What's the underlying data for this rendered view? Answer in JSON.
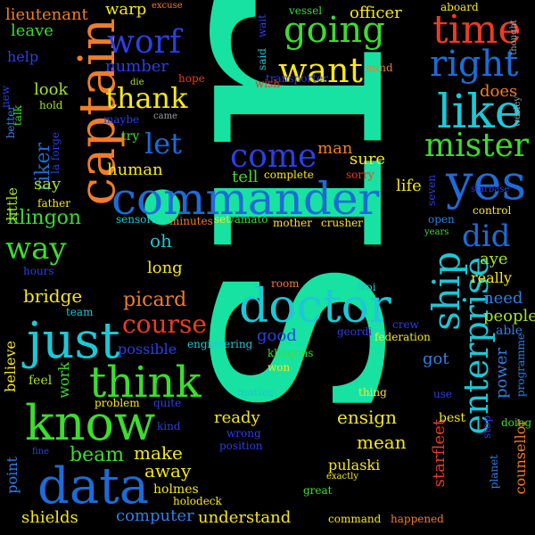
{
  "background": "#000000",
  "colors": {
    "teal": "#17e2a2",
    "green": "#3ddc2f",
    "yellow": "#f4e71d",
    "orange": "#f07d2a",
    "red": "#ea3b26",
    "blue": "#2b3fe6",
    "cyan": "#1cc8d6",
    "lime": "#a6e12f",
    "sky": "#2f7fe6",
    "gray": "#9aa0a8"
  },
  "words": [
    {
      "text": "sir",
      "color": "#17e2a2",
      "font_size": 360,
      "vertical": true
    },
    {
      "text": "commander",
      "color": "#1e6bd6",
      "font_size": 50
    },
    {
      "text": "know",
      "color": "#3ddc2f",
      "font_size": 54
    },
    {
      "text": "data",
      "color": "#1e6bd6",
      "font_size": 56
    },
    {
      "text": "captain",
      "color": "#f07d2a",
      "font_size": 56,
      "vertical": true
    },
    {
      "text": "doctor",
      "color": "#1cc8d6",
      "font_size": 52
    },
    {
      "text": "just",
      "color": "#1cc8d6",
      "font_size": 56
    },
    {
      "text": "yes",
      "color": "#1e6bd6",
      "font_size": 54
    },
    {
      "text": "like",
      "color": "#1cc8d6",
      "font_size": 52
    },
    {
      "text": "think",
      "color": "#3ddc2f",
      "font_size": 48
    },
    {
      "text": "time",
      "color": "#ea3b26",
      "font_size": 44
    },
    {
      "text": "enterprise",
      "color": "#1cc8d6",
      "font_size": 38,
      "vertical": true
    },
    {
      "text": "going",
      "color": "#3ddc2f",
      "font_size": 40
    },
    {
      "text": "want",
      "color": "#f4e71d",
      "font_size": 38
    },
    {
      "text": "right",
      "color": "#1e6bd6",
      "font_size": 40
    },
    {
      "text": "come",
      "color": "#2b3fe6",
      "font_size": 36
    },
    {
      "text": "mister",
      "color": "#3ddc2f",
      "font_size": 36
    },
    {
      "text": "ship",
      "color": "#1cc8d6",
      "font_size": 42,
      "vertical": true
    },
    {
      "text": "worf",
      "color": "#2b3fe6",
      "font_size": 36
    },
    {
      "text": "way",
      "color": "#3ddc2f",
      "font_size": 34
    },
    {
      "text": "did",
      "color": "#1e6bd6",
      "font_size": 34
    },
    {
      "text": "let",
      "color": "#1e6bd6",
      "font_size": 32
    },
    {
      "text": "thank",
      "color": "#f4e71d",
      "font_size": 32
    },
    {
      "text": "course",
      "color": "#ea3b26",
      "font_size": 28
    },
    {
      "text": "doctor",
      "color": "#1cc8d6",
      "font_size": 52,
      "duplicate": false
    },
    {
      "text": "klingon",
      "color": "#3ddc2f",
      "font_size": 22
    },
    {
      "text": "riker",
      "color": "#1e6bd6",
      "font_size": 22,
      "vertical": true
    },
    {
      "text": "picard",
      "color": "#f07d2a",
      "font_size": 22
    },
    {
      "text": "bridge",
      "color": "#f4e71d",
      "font_size": 20
    },
    {
      "text": "ensign",
      "color": "#f4e71d",
      "font_size": 20
    },
    {
      "text": "mean",
      "color": "#f4e71d",
      "font_size": 20
    },
    {
      "text": "ready",
      "color": "#f4e71d",
      "font_size": 18
    },
    {
      "text": "beam",
      "color": "#3ddc2f",
      "font_size": 22
    },
    {
      "text": "make",
      "color": "#f4e71d",
      "font_size": 20
    },
    {
      "text": "away",
      "color": "#f4e71d",
      "font_size": 20
    },
    {
      "text": "computer",
      "color": "#2f7fe6",
      "font_size": 18
    },
    {
      "text": "understand",
      "color": "#f4e71d",
      "font_size": 18
    },
    {
      "text": "shields",
      "color": "#f4e71d",
      "font_size": 18
    },
    {
      "text": "warp",
      "color": "#f4e71d",
      "font_size": 18
    },
    {
      "text": "lieutenant",
      "color": "#f07d2a",
      "font_size": 18
    },
    {
      "text": "leave",
      "color": "#3ddc2f",
      "font_size": 18
    },
    {
      "text": "help",
      "color": "#2b3fe6",
      "font_size": 16
    },
    {
      "text": "look",
      "color": "#a6e12f",
      "font_size": 18
    },
    {
      "text": "number",
      "color": "#2b3fe6",
      "font_size": 18
    },
    {
      "text": "officer",
      "color": "#f4e71d",
      "font_size": 18
    },
    {
      "text": "does",
      "color": "#f07d2a",
      "font_size": 18
    },
    {
      "text": "sure",
      "color": "#f4e71d",
      "font_size": 18
    },
    {
      "text": "tell",
      "color": "#3ddc2f",
      "font_size": 18
    },
    {
      "text": "man",
      "color": "#f07d2a",
      "font_size": 18
    },
    {
      "text": "human",
      "color": "#f4e71d",
      "font_size": 18
    },
    {
      "text": "say",
      "color": "#a6e12f",
      "font_size": 18
    },
    {
      "text": "little",
      "color": "#a6e12f",
      "font_size": 16,
      "vertical": true
    },
    {
      "text": "life",
      "color": "#f4e71d",
      "font_size": 18
    },
    {
      "text": "oh",
      "color": "#1cc8d6",
      "font_size": 20
    },
    {
      "text": "long",
      "color": "#f4e71d",
      "font_size": 18
    },
    {
      "text": "aye",
      "color": "#a6e12f",
      "font_size": 18
    },
    {
      "text": "really",
      "color": "#f4e71d",
      "font_size": 16
    },
    {
      "text": "need",
      "color": "#2f7fe6",
      "font_size": 18
    },
    {
      "text": "people",
      "color": "#a6e12f",
      "font_size": 18
    },
    {
      "text": "good",
      "color": "#2b3fe6",
      "font_size": 18
    },
    {
      "text": "got",
      "color": "#2f7fe6",
      "font_size": 18
    },
    {
      "text": "power",
      "color": "#2f7fe6",
      "font_size": 18,
      "vertical": true
    },
    {
      "text": "starfleet",
      "color": "#ea3b26",
      "font_size": 18,
      "vertical": true
    },
    {
      "text": "counsellor",
      "color": "#f07d2a",
      "font_size": 16,
      "vertical": true
    },
    {
      "text": "pulaski",
      "color": "#f4e71d",
      "font_size": 16
    },
    {
      "text": "holmes",
      "color": "#f4e71d",
      "font_size": 14
    },
    {
      "text": "point",
      "color": "#2f7fe6",
      "font_size": 16,
      "vertical": true
    },
    {
      "text": "believe",
      "color": "#f4e71d",
      "font_size": 16,
      "vertical": true
    },
    {
      "text": "work",
      "color": "#3ddc2f",
      "font_size": 16,
      "vertical": true
    },
    {
      "text": "feel",
      "color": "#a6e12f",
      "font_size": 14
    },
    {
      "text": "team",
      "color": "#1cc8d6",
      "font_size": 12
    },
    {
      "text": "hours",
      "color": "#2b3fe6",
      "font_size": 12
    },
    {
      "text": "father",
      "color": "#f4e71d",
      "font_size": 12
    },
    {
      "text": "la forge",
      "color": "#2b3fe6",
      "font_size": 12,
      "vertical": true
    },
    {
      "text": "better",
      "color": "#2f7fe6",
      "font_size": 12,
      "vertical": true
    },
    {
      "text": "talk",
      "color": "#3ddc2f",
      "font_size": 12,
      "vertical": true
    },
    {
      "text": "new",
      "color": "#2b3fe6",
      "font_size": 12,
      "vertical": true
    },
    {
      "text": "hold",
      "color": "#a6e12f",
      "font_size": 12
    },
    {
      "text": "die",
      "color": "#a6e12f",
      "font_size": 10
    },
    {
      "text": "hope",
      "color": "#ea3b26",
      "font_size": 12
    },
    {
      "text": "excuse",
      "color": "#f07d2a",
      "font_size": 10
    },
    {
      "text": "maybe",
      "color": "#2b3fe6",
      "font_size": 12
    },
    {
      "text": "try",
      "color": "#3ddc2f",
      "font_size": 14
    },
    {
      "text": "came",
      "color": "#9aa0a8",
      "font_size": 10
    },
    {
      "text": "sensors",
      "color": "#1cc8d6",
      "font_size": 12
    },
    {
      "text": "minutes",
      "color": "#f07d2a",
      "font_size": 12
    },
    {
      "text": "set",
      "color": "#f4e71d",
      "font_size": 12
    },
    {
      "text": "yamato",
      "color": "#3ddc2f",
      "font_size": 12
    },
    {
      "text": "mother",
      "color": "#f4e71d",
      "font_size": 12
    },
    {
      "text": "crusher",
      "color": "#f4e71d",
      "font_size": 12
    },
    {
      "text": "possible",
      "color": "#2b3fe6",
      "font_size": 16
    },
    {
      "text": "engineering",
      "color": "#1cc8d6",
      "font_size": 12
    },
    {
      "text": "problem",
      "color": "#f4e71d",
      "font_size": 12
    },
    {
      "text": "quite",
      "color": "#2b3fe6",
      "font_size": 12
    },
    {
      "text": "kind",
      "color": "#2b3fe6",
      "font_size": 12
    },
    {
      "text": "fine",
      "color": "#2b3fe6",
      "font_size": 10
    },
    {
      "text": "holodeck",
      "color": "#f4e71d",
      "font_size": 12
    },
    {
      "text": "wrong",
      "color": "#2b3fe6",
      "font_size": 12
    },
    {
      "text": "position",
      "color": "#2b3fe6",
      "font_size": 12
    },
    {
      "text": "matter",
      "color": "#1cc8d6",
      "font_size": 12
    },
    {
      "text": "klingons",
      "color": "#3ddc2f",
      "font_size": 12
    },
    {
      "text": "won",
      "color": "#f4e71d",
      "font_size": 12
    },
    {
      "text": "exactly",
      "color": "#f4e71d",
      "font_size": 10
    },
    {
      "text": "great",
      "color": "#3ddc2f",
      "font_size": 12
    },
    {
      "text": "command",
      "color": "#f4e71d",
      "font_size": 12
    },
    {
      "text": "happened",
      "color": "#f07d2a",
      "font_size": 12
    },
    {
      "text": "planet",
      "color": "#2f7fe6",
      "font_size": 12,
      "vertical": true
    },
    {
      "text": "stop",
      "color": "#2b3fe6",
      "font_size": 12,
      "vertical": true
    },
    {
      "text": "best",
      "color": "#f4e71d",
      "font_size": 14
    },
    {
      "text": "doing",
      "color": "#3ddc2f",
      "font_size": 12
    },
    {
      "text": "use",
      "color": "#2b3fe6",
      "font_size": 12
    },
    {
      "text": "thing",
      "color": "#f4e71d",
      "font_size": 12
    },
    {
      "text": "programme",
      "color": "#2f7fe6",
      "font_size": 12,
      "vertical": true
    },
    {
      "text": "able",
      "color": "#2f7fe6",
      "font_size": 14
    },
    {
      "text": "federation",
      "color": "#f4e71d",
      "font_size": 12
    },
    {
      "text": "crew",
      "color": "#2b3fe6",
      "font_size": 12
    },
    {
      "text": "geordi",
      "color": "#2b3fe6",
      "font_size": 12
    },
    {
      "text": "troi",
      "color": "#1cc8d6",
      "font_size": 12
    },
    {
      "text": "room",
      "color": "#f07d2a",
      "font_size": 12
    },
    {
      "text": "years",
      "color": "#3ddc2f",
      "font_size": 10
    },
    {
      "text": "open",
      "color": "#2f7fe6",
      "font_size": 12
    },
    {
      "text": "control",
      "color": "#f4e71d",
      "font_size": 12
    },
    {
      "text": "seven",
      "color": "#2b3fe6",
      "font_size": 12,
      "vertical": true
    },
    {
      "text": "starbase",
      "color": "#2b3fe6",
      "font_size": 10
    },
    {
      "text": "sorry",
      "color": "#ea3b26",
      "font_size": 12
    },
    {
      "text": "complete",
      "color": "#f4e71d",
      "font_size": 12
    },
    {
      "text": "transporter",
      "color": "#2b3fe6",
      "font_size": 12
    },
    {
      "text": "wish",
      "color": "#ea3b26",
      "font_size": 12
    },
    {
      "text": "said",
      "color": "#1cc8d6",
      "font_size": 12,
      "vertical": true
    },
    {
      "text": "mind",
      "color": "#f07d2a",
      "font_size": 12
    },
    {
      "text": "vessel",
      "color": "#3ddc2f",
      "font_size": 12
    },
    {
      "text": "wait",
      "color": "#2b3fe6",
      "font_size": 12,
      "vertical": true
    },
    {
      "text": "aboard",
      "color": "#f4e71d",
      "font_size": 12
    },
    {
      "text": "thought",
      "color": "#9aa0a8",
      "font_size": 10,
      "vertical": true
    },
    {
      "text": "wesley",
      "color": "#9aa0a8",
      "font_size": 10,
      "vertical": true
    }
  ]
}
